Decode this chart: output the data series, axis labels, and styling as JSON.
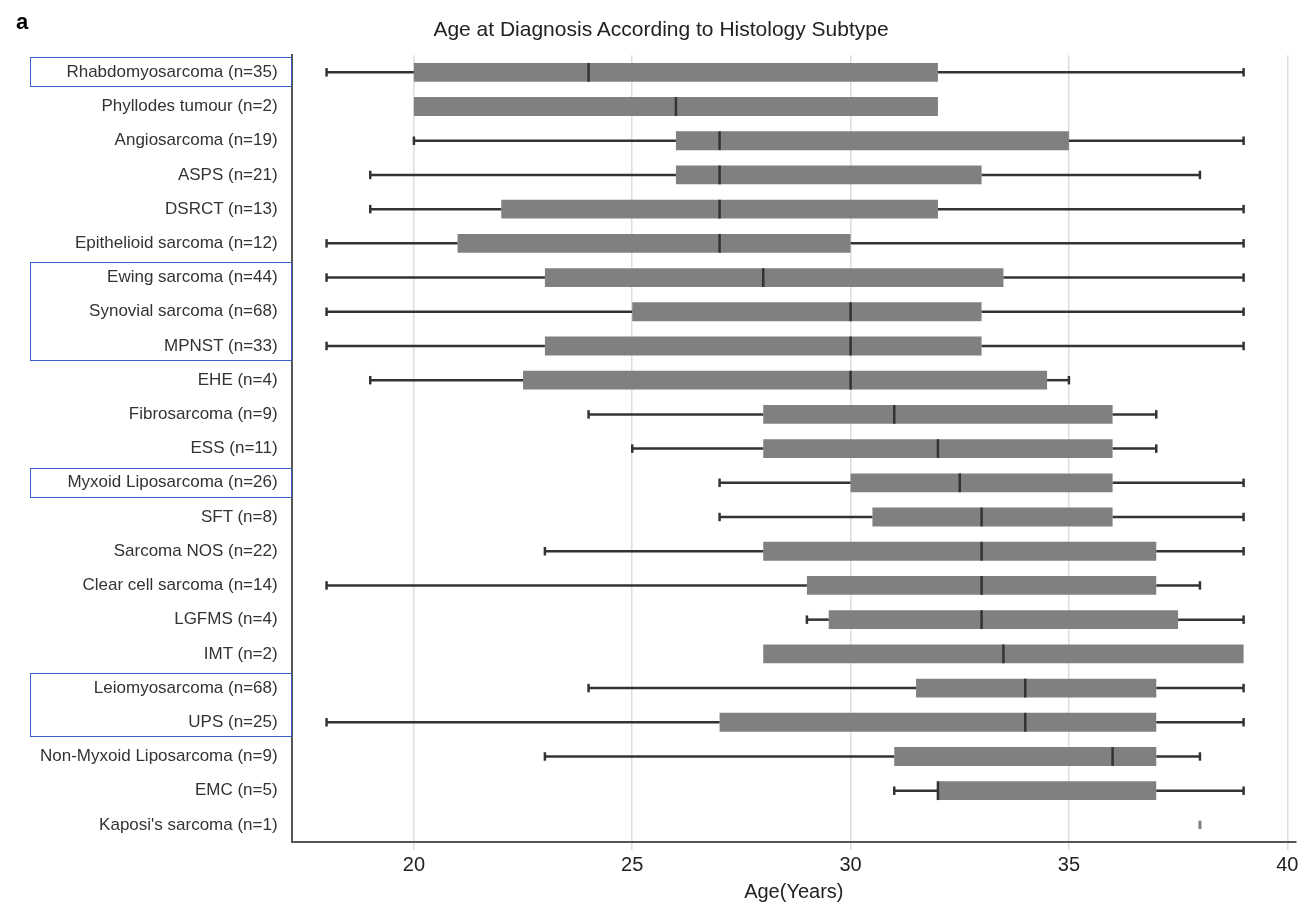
{
  "chart_data": {
    "type": "box",
    "orientation": "horizontal",
    "title": "Age at Diagnosis According to Histology Subtype",
    "xlabel": "Age(Years)",
    "annotations": [
      "a"
    ],
    "categories": [
      "Rhabdomyosarcoma (n=35)",
      "Phyllodes tumour (n=2)",
      "Angiosarcoma (n=19)",
      "ASPS (n=21)",
      "DSRCT (n=13)",
      "Epithelioid sarcoma (n=12)",
      "Ewing sarcoma (n=44)",
      "Synovial sarcoma (n=68)",
      "MPNST (n=33)",
      "EHE (n=4)",
      "Fibrosarcoma (n=9)",
      "ESS (n=11)",
      "Myxoid Liposarcoma (n=26)",
      "SFT (n=8)",
      "Sarcoma NOS (n=22)",
      "Clear cell sarcoma (n=14)",
      "LGFMS (n=4)",
      "IMT (n=2)",
      "Leiomyosarcoma (n=68)",
      "UPS (n=25)",
      "Non-Myxoid Liposarcoma (n=9)",
      "EMC (n=5)",
      "Kaposi's sarcoma (n=1)"
    ],
    "series": [
      {
        "color": "#808080",
        "boxes": [
          {
            "low": 18,
            "q1": 20,
            "median": 24,
            "q3": 32,
            "high": 39
          },
          {
            "low": 20,
            "q1": 20,
            "median": 26,
            "q3": 32,
            "high": 32
          },
          {
            "low": 20,
            "q1": 26,
            "median": 27,
            "q3": 35,
            "high": 39
          },
          {
            "low": 19,
            "q1": 26,
            "median": 27,
            "q3": 33,
            "high": 38
          },
          {
            "low": 19,
            "q1": 22,
            "median": 27,
            "q3": 32,
            "high": 39
          },
          {
            "low": 18,
            "q1": 21,
            "median": 27,
            "q3": 30,
            "high": 39
          },
          {
            "low": 18,
            "q1": 23,
            "median": 28,
            "q3": 33.5,
            "high": 39
          },
          {
            "low": 18,
            "q1": 25,
            "median": 30,
            "q3": 33,
            "high": 39
          },
          {
            "low": 18,
            "q1": 23,
            "median": 30,
            "q3": 33,
            "high": 39
          },
          {
            "low": 19,
            "q1": 22.5,
            "median": 30,
            "q3": 34.5,
            "high": 35
          },
          {
            "low": 24,
            "q1": 28,
            "median": 31,
            "q3": 36,
            "high": 37
          },
          {
            "low": 25,
            "q1": 28,
            "median": 32,
            "q3": 36,
            "high": 37
          },
          {
            "low": 27,
            "q1": 30,
            "median": 32.5,
            "q3": 36,
            "high": 39
          },
          {
            "low": 27,
            "q1": 30.5,
            "median": 33,
            "q3": 36,
            "high": 39
          },
          {
            "low": 23,
            "q1": 28,
            "median": 33,
            "q3": 37,
            "high": 39
          },
          {
            "low": 18,
            "q1": 29,
            "median": 33,
            "q3": 37,
            "high": 38
          },
          {
            "low": 29,
            "q1": 29.5,
            "median": 33,
            "q3": 37.5,
            "high": 39
          },
          {
            "low": 28,
            "q1": 28,
            "median": 33.5,
            "q3": 39,
            "high": 39
          },
          {
            "low": 24,
            "q1": 31.5,
            "median": 34,
            "q3": 37,
            "high": 39
          },
          {
            "low": 18,
            "q1": 27,
            "median": 34,
            "q3": 37,
            "high": 39
          },
          {
            "low": 23,
            "q1": 31,
            "median": 36,
            "q3": 37,
            "high": 38
          },
          {
            "low": 31,
            "q1": 32,
            "median": 32,
            "q3": 37,
            "high": 39
          },
          {
            "low": 38,
            "q1": 38,
            "median": 38,
            "q3": 38,
            "high": 38
          }
        ]
      }
    ],
    "xlim": [
      17.2,
      40.2
    ],
    "xticks": [
      20,
      25,
      30,
      35,
      40
    ],
    "grid": "x"
  }
}
